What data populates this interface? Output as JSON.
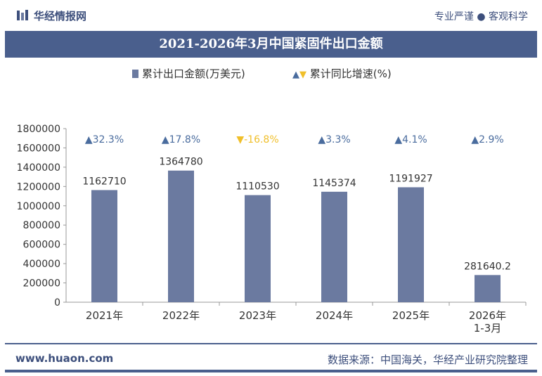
{
  "header": {
    "brand": "华经情报网",
    "tagline": "专业严谨 ● 客观科学"
  },
  "chart_data": {
    "type": "bar",
    "title": "2021-2026年3月中国紧固件出口金额",
    "categories": [
      "2021年",
      "2022年",
      "2023年",
      "2024年",
      "2025年",
      "2026年\n1-3月"
    ],
    "series": [
      {
        "name": "累计出口金额(万美元)",
        "values": [
          1162710,
          1364780,
          1110530,
          1145374,
          1191927,
          281640.2
        ],
        "value_labels": [
          "1162710",
          "1364780",
          "1110530",
          "1145374",
          "1191927",
          "281640.2"
        ],
        "color": "#6b7aa0"
      },
      {
        "name": "累计同比增速(%)",
        "values": [
          32.3,
          17.8,
          -16.8,
          3.3,
          4.1,
          2.9
        ],
        "value_labels": [
          "▲32.3%",
          "▲17.8%",
          "▼-16.8%",
          "▲3.3%",
          "▲4.1%",
          "▲2.9%"
        ],
        "up_color": "#4a6c9e",
        "down_color": "#f0bf2a"
      }
    ],
    "ylim": [
      0,
      1800000
    ],
    "yticks": [
      0,
      200000,
      400000,
      600000,
      800000,
      1000000,
      1200000,
      1400000,
      1600000,
      1800000
    ],
    "ytick_labels": [
      "0",
      "200000",
      "400000",
      "600000",
      "800000",
      "1000000",
      "1200000",
      "1400000",
      "1600000",
      "1800000"
    ],
    "grid": false,
    "legend_position": "top"
  },
  "footer": {
    "url": "www.huaon.com",
    "source": "数据来源：中国海关，华经产业研究院整理"
  }
}
